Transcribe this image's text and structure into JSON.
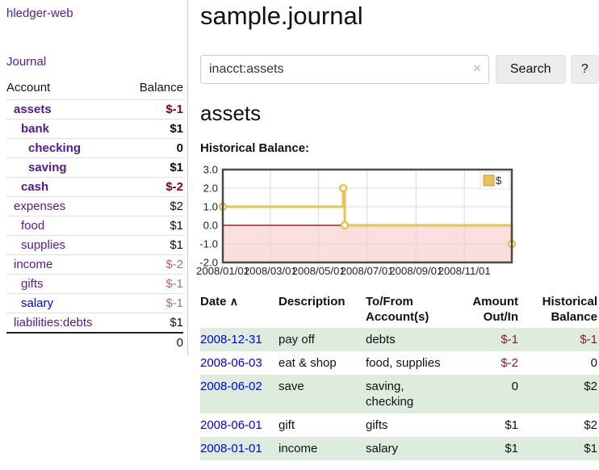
{
  "app": {
    "brand": "hledger-web",
    "nav_journal": "Journal"
  },
  "sidebar": {
    "columns": {
      "account": "Account",
      "balance": "Balance"
    },
    "rows": [
      {
        "account": "assets",
        "balance": "$-1"
      },
      {
        "account": "bank",
        "balance": "$1"
      },
      {
        "account": "checking",
        "balance": "0"
      },
      {
        "account": "saving",
        "balance": "$1"
      },
      {
        "account": "cash",
        "balance": "$-2"
      },
      {
        "account": "expenses",
        "balance": "$2"
      },
      {
        "account": "food",
        "balance": "$1"
      },
      {
        "account": "supplies",
        "balance": "$1"
      },
      {
        "account": "income",
        "balance": "$-2"
      },
      {
        "account": "gifts",
        "balance": "$-1"
      },
      {
        "account": "salary",
        "balance": "$-1"
      },
      {
        "account": "liabilities:debts",
        "balance": "$1"
      }
    ],
    "total": "0"
  },
  "main": {
    "title": "sample.journal",
    "search": {
      "value": "inacct:assets",
      "clear_icon": "×",
      "button_label": "Search",
      "help_label": "?"
    },
    "account_heading": "assets"
  },
  "chart_data": {
    "type": "line",
    "step": true,
    "title": "Historical Balance:",
    "series": [
      {
        "name": "$",
        "points": [
          [
            "2008-01-01",
            1
          ],
          [
            "2008-06-01",
            2
          ],
          [
            "2008-06-03",
            0
          ],
          [
            "2008-12-31",
            -1
          ]
        ]
      }
    ],
    "x_range": [
      "2008-01-01",
      "2008-12-31"
    ],
    "ylim": [
      -2,
      3
    ],
    "y_ticks": [
      "3.0",
      "2.0",
      "1.0",
      "0.0",
      "-1.0",
      "-2.0"
    ],
    "x_ticks": [
      "2008/01/01",
      "2008/03/01",
      "2008/05/01",
      "2008/07/01",
      "2008/09/01",
      "2008/11/01"
    ],
    "grid": true,
    "legend_position": "top-right",
    "style": {
      "line_color": "#e6c155",
      "marker_fill": "#ffffff",
      "negative_fill": "#fbdede",
      "zero_line_color": "#8b0000",
      "grid_color": "#d9d9d9",
      "border_color": "#4a4a4a",
      "tick_color": "#222222"
    }
  },
  "register": {
    "sort_icon": "∧",
    "headers": {
      "date": "Date",
      "description": "Description",
      "tofrom_line1": "To/From",
      "tofrom_line2": "Account(s)",
      "amount_line1": "Amount",
      "amount_line2": "Out/In",
      "balance_line1": "Historical",
      "balance_line2": "Balance"
    },
    "rows": [
      {
        "date": "2008-12-31",
        "description": "pay off",
        "accounts": "debts",
        "amount": "$-1",
        "balance": "$-1"
      },
      {
        "date": "2008-06-03",
        "description": "eat & shop",
        "accounts": "food, supplies",
        "amount": "$-2",
        "balance": "0"
      },
      {
        "date": "2008-06-02",
        "description": "save",
        "accounts": "saving, checking",
        "amount": "0",
        "balance": "$2"
      },
      {
        "date": "2008-06-01",
        "description": "gift",
        "accounts": "gifts",
        "amount": "$1",
        "balance": "$2"
      },
      {
        "date": "2008-01-01",
        "description": "income",
        "accounts": "salary",
        "amount": "$1",
        "balance": "$1"
      }
    ]
  }
}
